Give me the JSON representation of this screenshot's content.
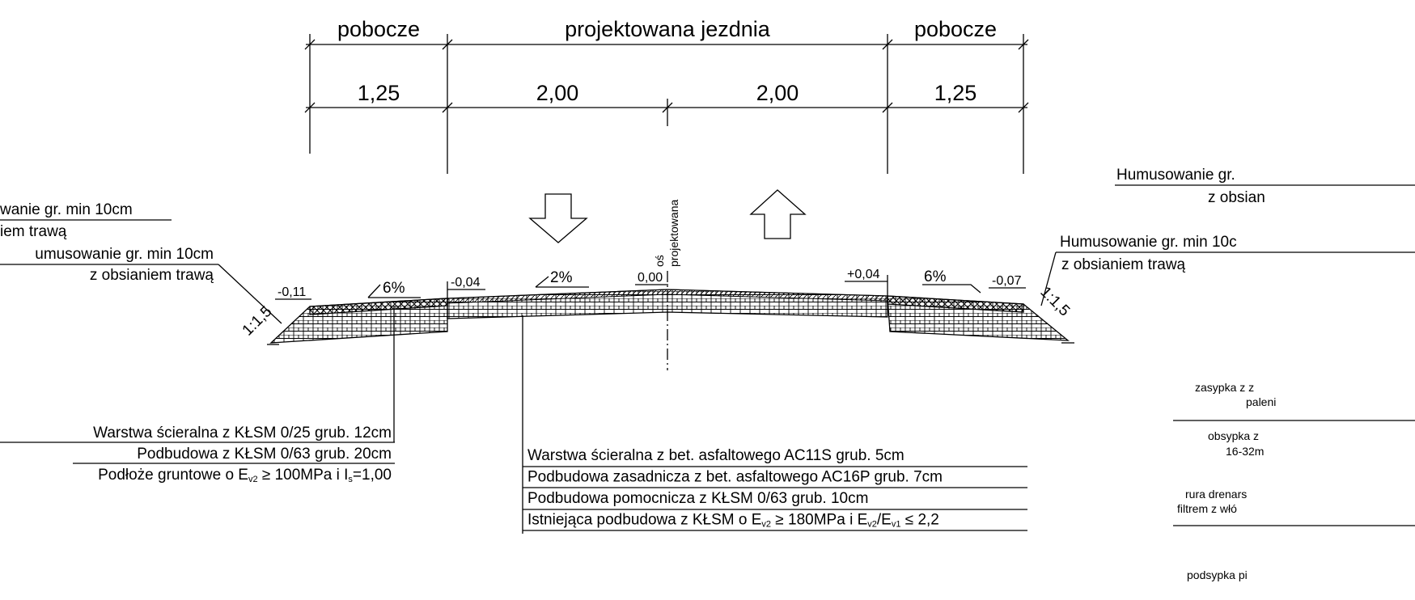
{
  "dimensions": {
    "headers": [
      "pobocze",
      "projektowana jezdnia",
      "pobocze"
    ],
    "widths": [
      "1,25",
      "2,00",
      "2,00",
      "1,25"
    ]
  },
  "notes": {
    "left_top": [
      "wanie gr. min 10cm",
      "iem trawą"
    ],
    "left": [
      "umusowanie gr. min 10cm",
      "z obsianiem trawą"
    ],
    "right_top": [
      "Humusowanie gr.",
      "z obsian"
    ],
    "right": [
      "Humusowanie gr. min 10c",
      "z obsianiem trawą"
    ]
  },
  "levels": [
    "-0,11",
    "-0,04",
    "0,00",
    "+0,04",
    "-0,07"
  ],
  "slopes": [
    "6%",
    "2%",
    "6%"
  ],
  "embankment": [
    "1:1,5",
    "1:1,5"
  ],
  "axis_label": [
    "oś",
    "projektowana"
  ],
  "shoulder_layers": [
    [
      "Warstwa ścieralna z KŁSM 0/25 grub. 12cm"
    ],
    [
      "Podbudowa z KŁSM 0/63 grub. 20cm"
    ],
    [
      "Podłoże gruntowe o E",
      "v2",
      " ≥ 100MPa i I",
      "s",
      "=1,00"
    ]
  ],
  "road_layers": [
    [
      "Warstwa ścieralna z bet. asfaltowego AC11S grub. 5cm"
    ],
    [
      "Podbudowa zasadnicza z bet. asfaltowego AC16P grub. 7cm"
    ],
    [
      "Podbudowa pomocnicza z KŁSM 0/63 grub. 10cm"
    ],
    [
      "Istniejąca podbudowa z KŁSM o E",
      "v2",
      " ≥ 180MPa i E",
      "v2",
      "/E",
      "v1",
      " ≤ 2,2"
    ]
  ],
  "drain_notes": [
    "zasypka z z",
    "paleni",
    "obsypka z",
    "16-32m",
    "rura drenars",
    "filtrem z włó",
    "podsypka pi"
  ]
}
